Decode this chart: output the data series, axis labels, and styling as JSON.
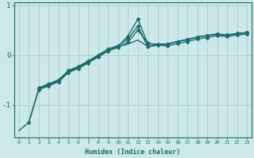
{
  "xlabel": "Humidex (Indice chaleur)",
  "bg_color": "#cce8e8",
  "grid_color": "#aacccc",
  "line_color": "#1a6b6b",
  "x": [
    0,
    1,
    2,
    3,
    4,
    5,
    6,
    7,
    8,
    9,
    10,
    11,
    12,
    13,
    14,
    15,
    16,
    17,
    18,
    19,
    20,
    21,
    22,
    23
  ],
  "lines": [
    {
      "y": [
        null,
        -1.35,
        -0.68,
        -0.6,
        -0.52,
        -0.33,
        -0.25,
        -0.14,
        -0.02,
        0.1,
        0.17,
        0.38,
        0.72,
        0.22,
        0.22,
        0.22,
        0.27,
        0.31,
        0.36,
        0.39,
        0.42,
        0.4,
        0.43,
        0.45
      ],
      "marker": true,
      "lw": 1.0
    },
    {
      "y": [
        -1.52,
        -1.35,
        -0.68,
        -0.6,
        -0.52,
        -0.33,
        -0.25,
        -0.14,
        -0.02,
        0.1,
        0.17,
        0.22,
        0.3,
        0.17,
        0.2,
        0.22,
        0.27,
        0.31,
        0.36,
        0.39,
        0.42,
        0.4,
        0.43,
        0.45
      ],
      "marker": false,
      "lw": 1.0
    },
    {
      "y": [
        null,
        null,
        -0.66,
        -0.58,
        -0.5,
        -0.31,
        -0.23,
        -0.12,
        0.0,
        0.12,
        0.19,
        0.32,
        0.58,
        0.16,
        0.2,
        0.22,
        0.27,
        0.31,
        0.36,
        0.39,
        0.42,
        0.4,
        0.43,
        0.45
      ],
      "marker": true,
      "lw": 1.0
    },
    {
      "y": [
        null,
        null,
        -0.7,
        -0.62,
        -0.54,
        -0.35,
        -0.27,
        -0.16,
        -0.04,
        0.08,
        0.15,
        0.26,
        0.5,
        0.24,
        0.2,
        0.18,
        0.23,
        0.27,
        0.32,
        0.35,
        0.39,
        0.37,
        0.4,
        0.42
      ],
      "marker": true,
      "lw": 1.0
    }
  ],
  "yticks": [
    -1,
    0,
    1
  ],
  "ylim": [
    -1.65,
    1.05
  ],
  "xlim": [
    -0.5,
    23.5
  ],
  "xticks": [
    0,
    1,
    2,
    3,
    4,
    5,
    6,
    7,
    8,
    9,
    10,
    11,
    12,
    13,
    14,
    15,
    16,
    17,
    18,
    19,
    20,
    21,
    22,
    23
  ]
}
